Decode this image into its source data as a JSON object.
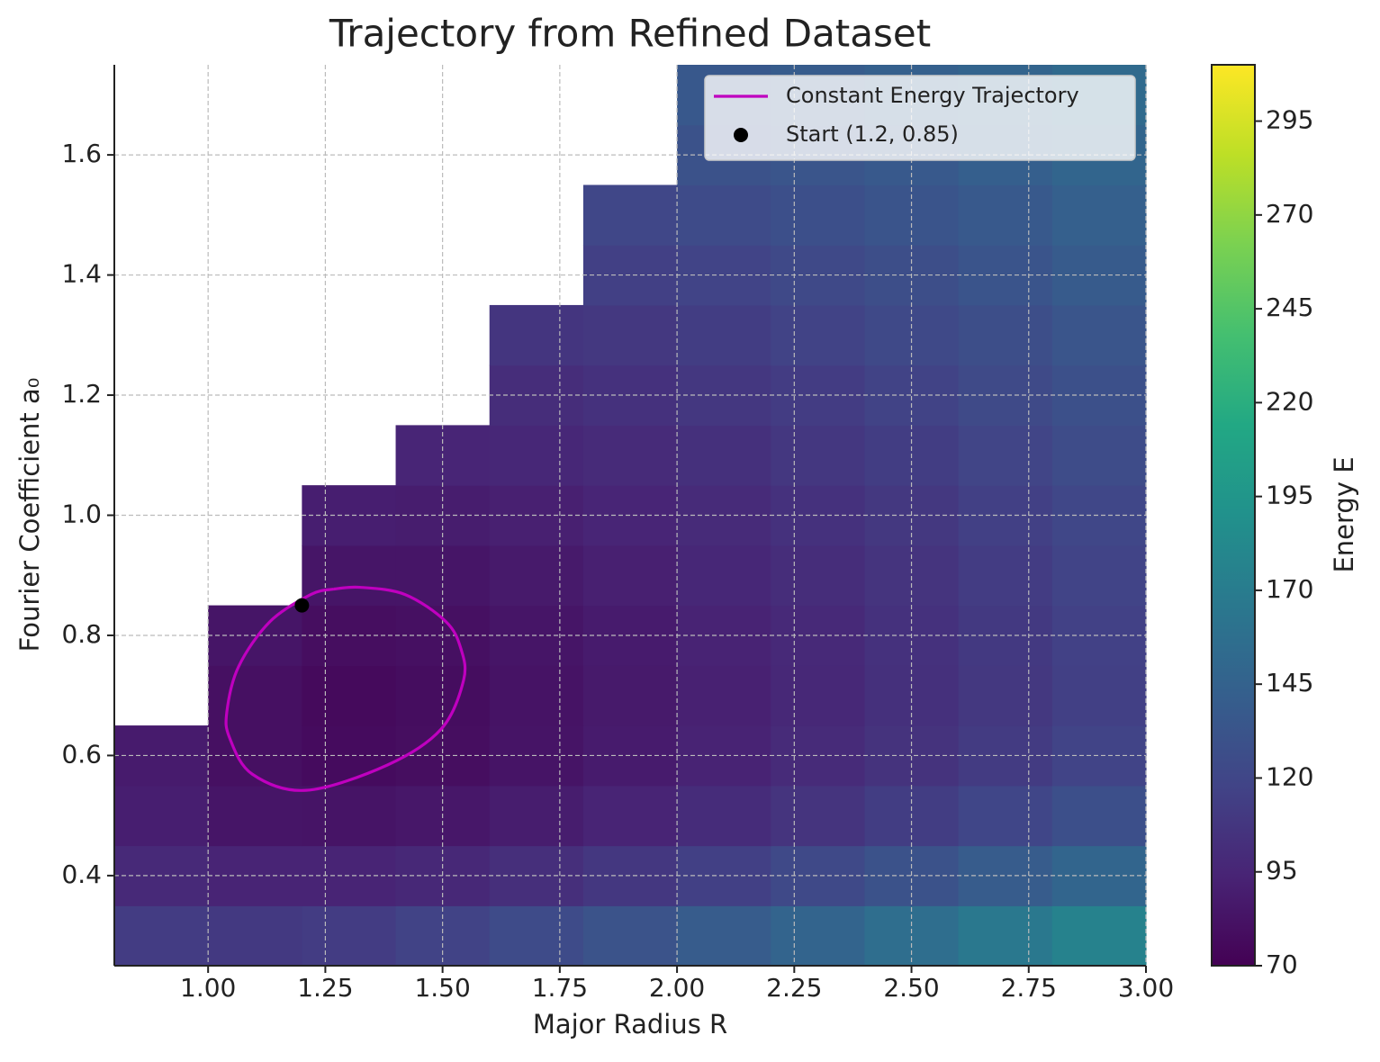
{
  "chart_data": {
    "type": "contourf",
    "title": "Trajectory from Refined Dataset",
    "xlabel": "Major Radius R",
    "ylabel": "Fourier Coefficient a₀",
    "xlim": [
      0.8,
      3.0
    ],
    "ylim": [
      0.25,
      1.75
    ],
    "xticks": [
      {
        "value": 1,
        "label": "1.00"
      },
      1.25,
      {
        "value": 1.5,
        "label": "1.50"
      },
      1.75,
      {
        "value": 2,
        "label": "2.00"
      },
      2.25,
      {
        "value": 2.5,
        "label": "2.50"
      },
      2.75,
      {
        "value": 3,
        "label": "3.00"
      }
    ],
    "yticks": [
      0.4,
      0.6,
      0.8,
      {
        "value": 1,
        "label": "1.0"
      },
      1.2,
      1.4,
      1.6
    ],
    "grid": true,
    "colormap": "viridis",
    "field": {
      "x": [
        0.9,
        1.1,
        1.3,
        1.5,
        1.7,
        1.9,
        2.1,
        2.3,
        2.5,
        2.7,
        2.9
      ],
      "y": [
        0.3,
        0.4,
        0.5,
        0.6,
        0.7,
        0.8,
        0.9,
        1.0,
        1.1,
        1.2,
        1.3,
        1.4,
        1.5,
        1.6,
        1.7
      ],
      "z": [
        [
          112,
          110,
          112,
          117,
          124,
          131,
          139,
          147,
          156,
          166,
          176
        ],
        [
          98,
          94,
          94,
          97,
          102,
          108,
          115,
          122,
          130,
          139,
          148
        ],
        [
          90,
          84,
          83,
          85,
          89,
          94,
          100,
          106,
          113,
          120,
          128
        ],
        [
          88,
          80,
          77,
          79,
          83,
          88,
          93,
          99,
          105,
          111,
          118
        ],
        [
          null,
          80,
          76,
          78,
          82,
          87,
          92,
          97,
          103,
          109,
          115
        ],
        [
          null,
          84,
          79,
          80,
          84,
          88,
          93,
          98,
          104,
          110,
          116
        ],
        [
          null,
          null,
          84,
          84,
          87,
          91,
          96,
          101,
          106,
          112,
          118
        ],
        [
          null,
          null,
          90,
          89,
          91,
          95,
          99,
          104,
          109,
          115,
          121
        ],
        [
          null,
          null,
          null,
          95,
          96,
          99,
          103,
          108,
          113,
          119,
          125
        ],
        [
          null,
          null,
          null,
          null,
          101,
          104,
          108,
          112,
          117,
          123,
          129
        ],
        [
          null,
          null,
          null,
          null,
          107,
          109,
          113,
          117,
          122,
          127,
          133
        ],
        [
          null,
          null,
          null,
          null,
          null,
          115,
          118,
          122,
          127,
          132,
          138
        ],
        [
          null,
          null,
          null,
          null,
          null,
          121,
          124,
          128,
          132,
          137,
          143
        ],
        [
          null,
          null,
          null,
          null,
          null,
          null,
          130,
          133,
          137,
          142,
          148
        ],
        [
          null,
          null,
          null,
          null,
          null,
          null,
          136,
          139,
          143,
          147,
          153
        ]
      ]
    },
    "colorbar": {
      "label": "Energy E",
      "lim": [
        70,
        310
      ],
      "ticks": [
        70,
        95,
        120,
        145,
        170,
        195,
        220,
        245,
        270,
        295
      ]
    },
    "series": [
      {
        "type": "line",
        "name": "Constant Energy Trajectory",
        "color": "#bf00bf",
        "x": [
          1.267,
          1.324,
          1.42,
          1.507,
          1.539,
          1.545,
          1.497,
          1.382,
          1.209,
          1.094,
          1.046,
          1.04,
          1.065,
          1.132,
          1.219,
          1.267
        ],
        "y": [
          0.877,
          0.88,
          0.868,
          0.823,
          0.778,
          0.726,
          0.644,
          0.584,
          0.542,
          0.569,
          0.629,
          0.673,
          0.748,
          0.823,
          0.868,
          0.877
        ]
      },
      {
        "type": "scatter",
        "name": "Start (1.2, 0.85)",
        "color": "#000000",
        "x": [
          1.2
        ],
        "y": [
          0.85
        ]
      }
    ],
    "legend": "upper right"
  }
}
